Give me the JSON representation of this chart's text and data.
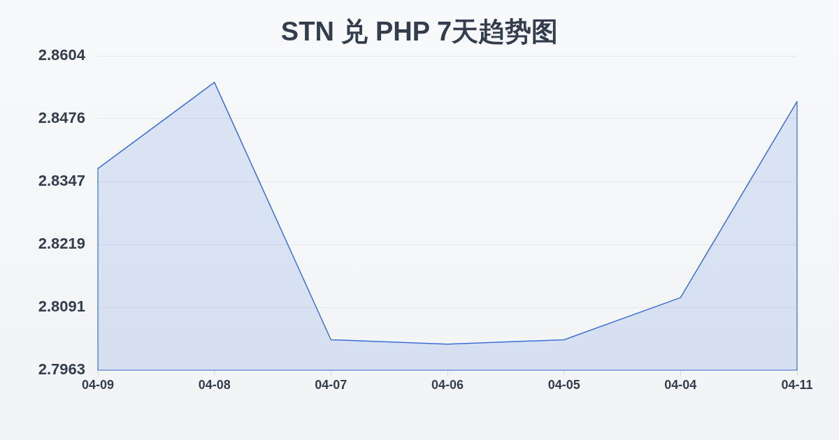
{
  "chart_data": {
    "type": "area",
    "title": "STN 兑 PHP 7天趋势图",
    "categories": [
      "04-09",
      "04-08",
      "04-07",
      "04-06",
      "04-05",
      "04-04",
      "04-11"
    ],
    "series": [
      {
        "color": "#3b6fd4",
        "values": [
          2.8374,
          2.855,
          2.8025,
          2.8016,
          2.8025,
          2.8111,
          2.8511
        ]
      }
    ],
    "ylim": [
      2.7963,
      2.8604
    ],
    "yticks": [
      2.7963,
      2.8091,
      2.8219,
      2.8347,
      2.8476,
      2.8604
    ],
    "grid": "y",
    "marker": "none"
  }
}
